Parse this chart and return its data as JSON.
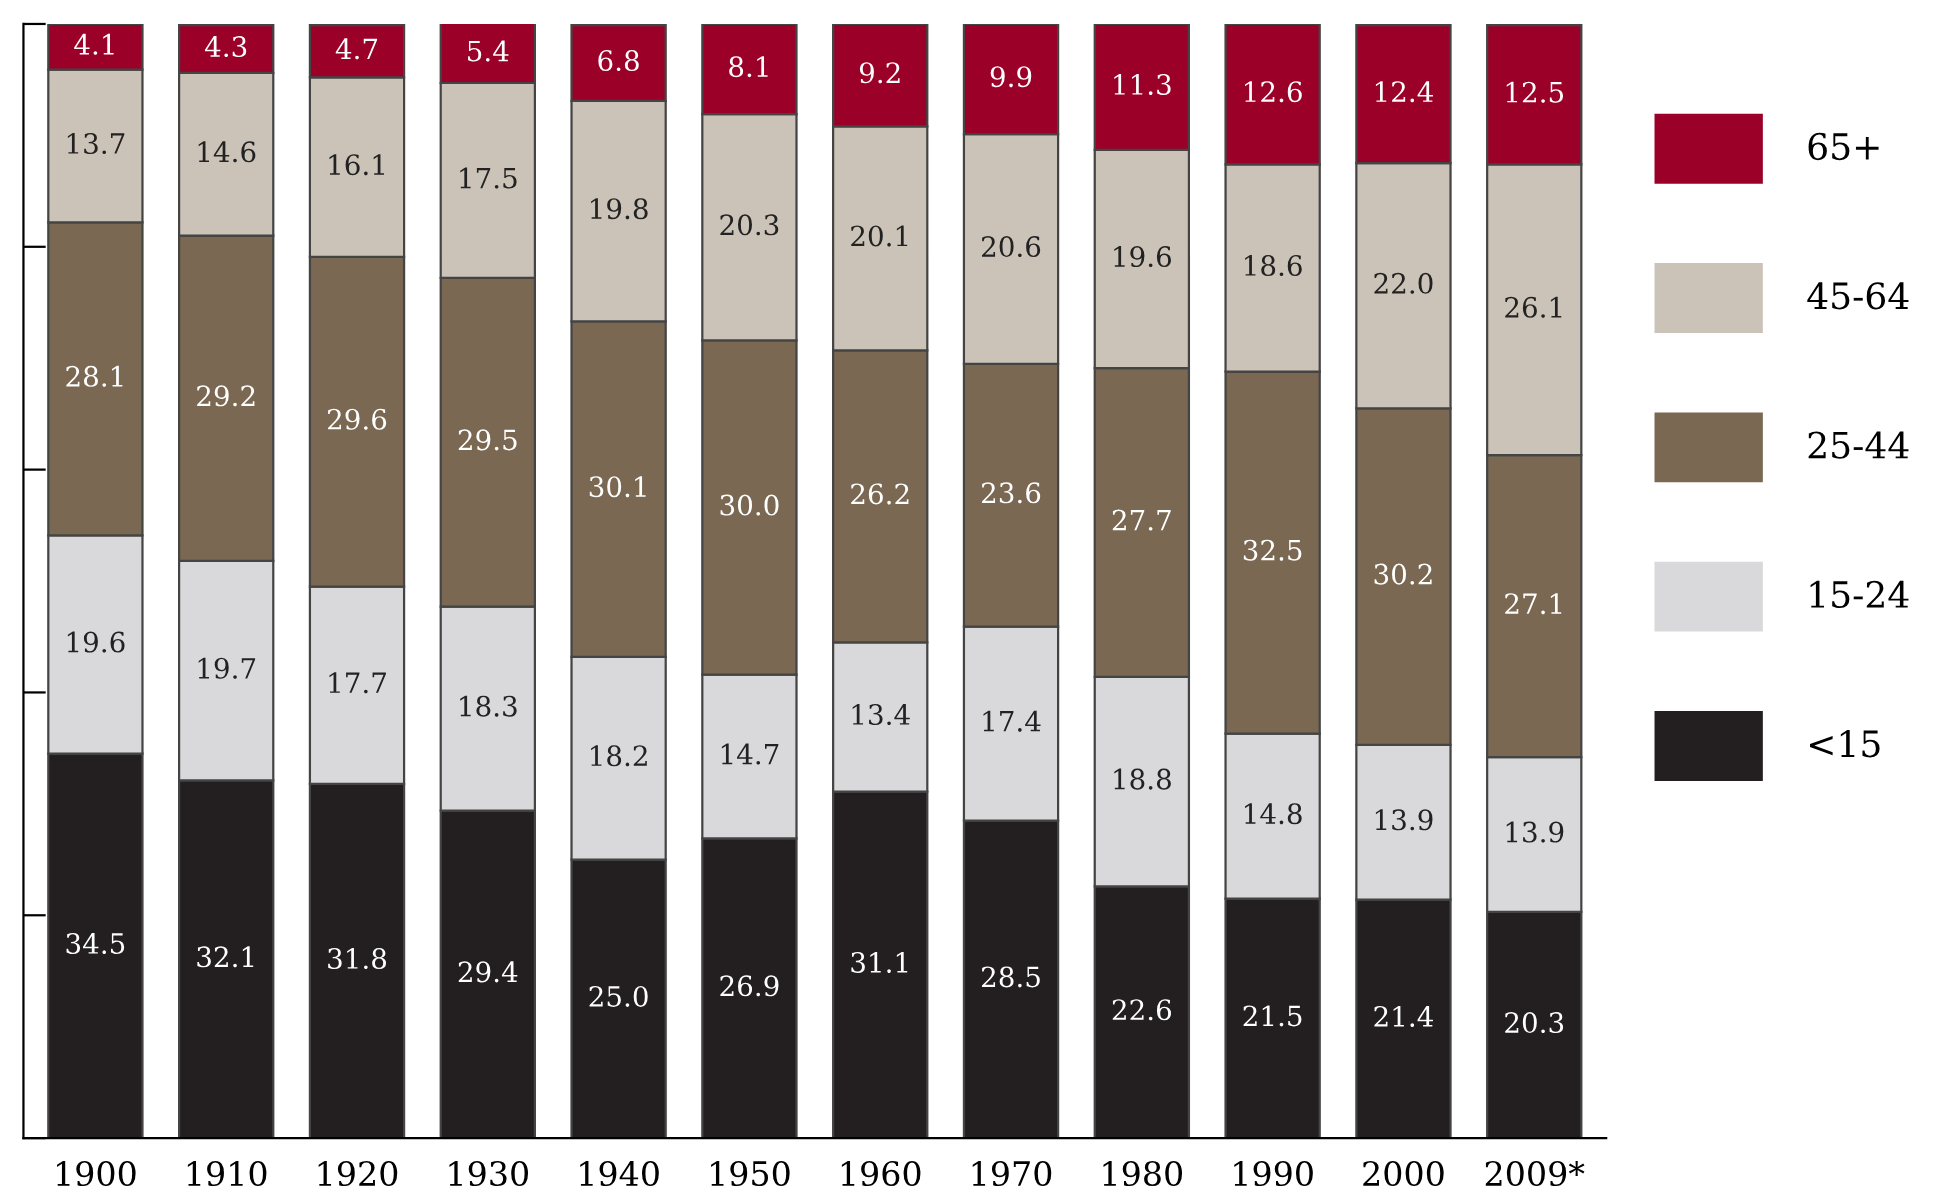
{
  "chart_data": {
    "type": "bar",
    "stacked": true,
    "grid": false,
    "legend": "right",
    "categories": [
      "1900",
      "1910",
      "1920",
      "1930",
      "1940",
      "1950",
      "1960",
      "1970",
      "1980",
      "1990",
      "2000",
      "2009*"
    ],
    "ylim": [
      0,
      100
    ],
    "yticks": [
      {
        "value": 0,
        "label": null
      },
      {
        "value": 20,
        "label": null
      },
      {
        "value": 40,
        "label": null
      },
      {
        "value": 60,
        "label": null
      },
      {
        "value": 80,
        "label": null
      },
      {
        "value": 100,
        "label": null
      }
    ],
    "series": [
      {
        "name": "<15",
        "color": "#231f20",
        "values": [
          34.5,
          32.1,
          31.8,
          29.4,
          25.0,
          26.9,
          31.1,
          28.5,
          22.6,
          21.5,
          21.4,
          20.3
        ],
        "value_labels": [
          "34.5",
          "32.1",
          "31.8",
          "29.4",
          "25.0",
          "26.9",
          "31.1",
          "28.5",
          "22.6",
          "21.5",
          "21.4",
          "20.3"
        ]
      },
      {
        "name": "15-24",
        "color": "#d9d9db",
        "values": [
          19.6,
          19.7,
          17.7,
          18.3,
          18.2,
          14.7,
          13.4,
          17.4,
          18.8,
          14.8,
          13.9,
          13.9
        ],
        "value_labels": [
          "19.6",
          "19.7",
          "17.7",
          "18.3",
          "18.2",
          "14.7",
          "13.4",
          "17.4",
          "18.8",
          "14.8",
          "13.9",
          "13.9"
        ]
      },
      {
        "name": "25-44",
        "color": "#7a6852",
        "values": [
          28.1,
          29.2,
          29.6,
          29.5,
          30.1,
          30.0,
          26.2,
          23.6,
          27.7,
          32.5,
          30.2,
          27.1
        ],
        "value_labels": [
          "28.1",
          "29.2",
          "29.6",
          "29.5",
          "30.1",
          "30.0",
          "26.2",
          "23.6",
          "27.7",
          "32.5",
          "30.2",
          "27.1"
        ]
      },
      {
        "name": "45-64",
        "color": "#cbc3b8",
        "values": [
          13.7,
          14.6,
          16.1,
          17.5,
          19.8,
          20.3,
          20.1,
          20.6,
          19.6,
          18.6,
          22.0,
          26.1
        ],
        "value_labels": [
          "13.7",
          "14.6",
          "16.1",
          "17.5",
          "19.8",
          "20.3",
          "20.1",
          "20.6",
          "19.6",
          "18.6",
          "22.0",
          "26.1"
        ]
      },
      {
        "name": "65+",
        "color": "#9b0029",
        "values": [
          4.1,
          4.3,
          4.7,
          5.4,
          6.8,
          8.1,
          9.2,
          9.9,
          11.3,
          12.6,
          12.4,
          12.5
        ],
        "value_labels": [
          "4.1",
          "4.3",
          "4.7",
          "5.4",
          "6.8",
          "8.1",
          "9.2",
          "9.9",
          "11.3",
          "12.6",
          "12.4",
          "12.5"
        ]
      }
    ]
  }
}
